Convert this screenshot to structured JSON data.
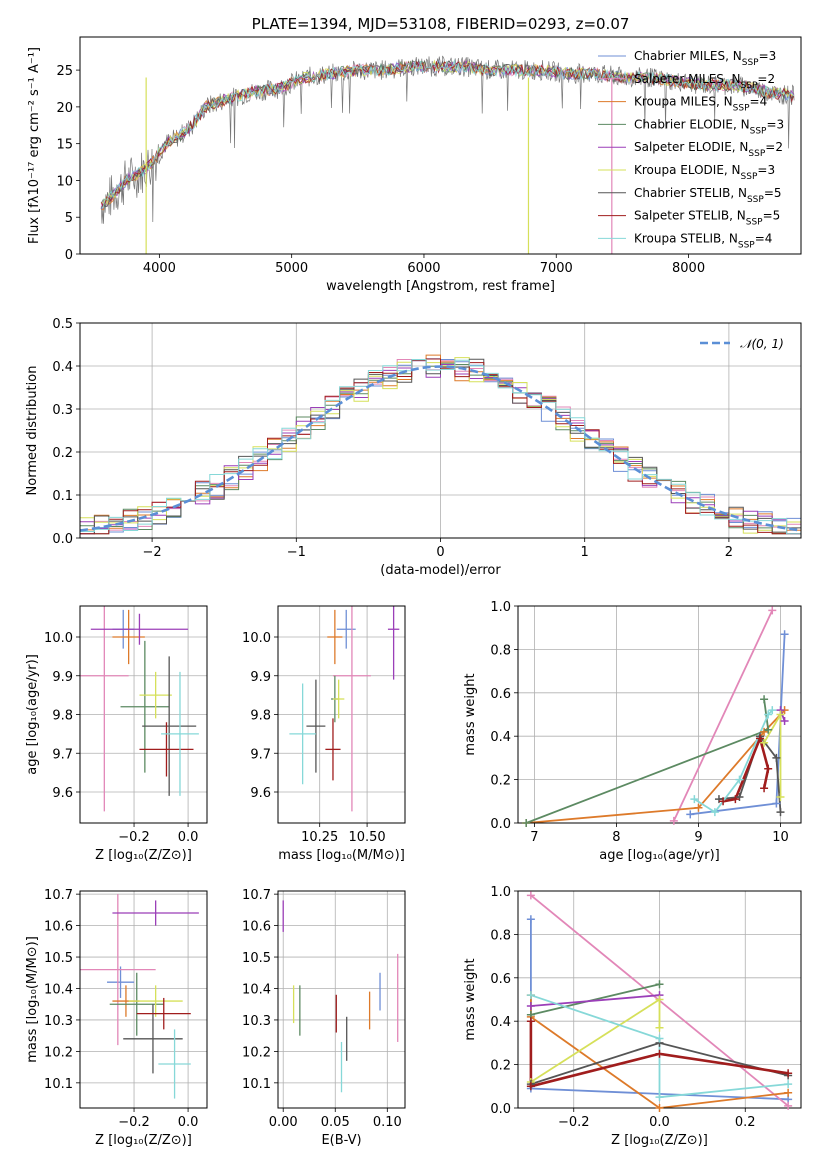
{
  "colors": {
    "chabrier_miles": "#6f8fd6",
    "salpeter_miles": "#e287b8",
    "kroupa_miles": "#dd7a2a",
    "chabrier_elodie": "#5c8a62",
    "salpeter_elodie": "#9b3fb8",
    "kroupa_elodie": "#d6e05a",
    "chabrier_stelib": "#555555",
    "salpeter_stelib": "#a01d1d",
    "kroupa_stelib": "#86d8d8",
    "data": "#777777",
    "normal": "#5b8fd6"
  },
  "legend_models": [
    {
      "key": "chabrier_miles",
      "label": "Chabrier MILES, N",
      "sub": "SSP",
      "n": "=3"
    },
    {
      "key": "salpeter_miles",
      "label": "Salpeter MILES, N",
      "sub": "SSP",
      "n": "=2"
    },
    {
      "key": "kroupa_miles",
      "label": "Kroupa MILES, N",
      "sub": "SSP",
      "n": "=4"
    },
    {
      "key": "chabrier_elodie",
      "label": "Chabrier ELODIE, N",
      "sub": "SSP",
      "n": "=3"
    },
    {
      "key": "salpeter_elodie",
      "label": "Salpeter ELODIE, N",
      "sub": "SSP",
      "n": "=2"
    },
    {
      "key": "kroupa_elodie",
      "label": "Kroupa ELODIE, N",
      "sub": "SSP",
      "n": "=3"
    },
    {
      "key": "chabrier_stelib",
      "label": "Chabrier STELIB, N",
      "sub": "SSP",
      "n": "=5"
    },
    {
      "key": "salpeter_stelib",
      "label": "Salpeter STELIB, N",
      "sub": "SSP",
      "n": "=5"
    },
    {
      "key": "kroupa_stelib",
      "label": "Kroupa STELIB, N",
      "sub": "SSP",
      "n": "=4"
    }
  ],
  "chart_data": [
    {
      "id": "spectrum",
      "type": "line",
      "title": "PLATE=1394, MJD=53108, FIBERID=0293, z=0.07",
      "xlabel": "wavelength [Angstrom, rest frame]",
      "ylabel": "Flux [fλ10⁻¹⁷ erg cm⁻² s⁻¹ A⁻¹]",
      "xlim": [
        3400,
        8850
      ],
      "ylim": [
        0,
        29.5
      ],
      "xticks": [
        4000,
        5000,
        6000,
        7000,
        8000
      ],
      "yticks": [
        0,
        5,
        10,
        15,
        20,
        25
      ],
      "legend": "upper right",
      "continuum_x": [
        3560,
        3650,
        3750,
        3850,
        3950,
        4050,
        4150,
        4250,
        4350,
        4500,
        4700,
        4900,
        5100,
        5300,
        5500,
        5700,
        5900,
        6100,
        6300,
        6500,
        6700,
        6900,
        7100,
        7300,
        7500,
        7700,
        7900,
        8100,
        8300,
        8500,
        8600,
        8800
      ],
      "continuum_y": [
        6.5,
        8,
        10,
        11,
        12.5,
        15,
        16,
        17.5,
        20,
        21,
        22,
        22.5,
        24,
        24.5,
        25,
        25,
        25.5,
        25.5,
        25.5,
        25,
        25,
        25,
        24.5,
        24.5,
        24,
        24,
        23.5,
        23,
        23,
        22.5,
        22,
        21.5
      ]
    },
    {
      "id": "residuals",
      "type": "histogram",
      "xlabel": "(data-model)/error",
      "ylabel": "Normed distribution",
      "xlim": [
        -2.5,
        2.5
      ],
      "ylim": [
        0,
        0.5
      ],
      "xticks": [
        -2,
        -1,
        0,
        1,
        2
      ],
      "yticks": [
        0.0,
        0.1,
        0.2,
        0.3,
        0.4,
        0.5
      ],
      "grid": true,
      "legend_label": "𝒩(0, 1)",
      "legend": "upper right"
    },
    {
      "id": "age_vs_Z",
      "type": "scatter",
      "xlabel": "Z [log₁₀(Z/Z⊙)]",
      "ylabel": "age [log₁₀(age/yr)]",
      "xlim": [
        -0.4,
        0.07
      ],
      "ylim": [
        9.52,
        10.08
      ],
      "xticks": [
        -0.2,
        0.0
      ],
      "yticks": [
        9.6,
        9.7,
        9.8,
        9.9,
        10.0
      ],
      "grid": true,
      "points": [
        {
          "key": "chabrier_miles",
          "x": -0.24,
          "y": 10.02,
          "xerr": 0.04,
          "yerr": 0.05
        },
        {
          "key": "salpeter_miles",
          "x": -0.31,
          "y": 9.9,
          "xerr": 0.09,
          "yerr": 0.35
        },
        {
          "key": "kroupa_miles",
          "x": -0.22,
          "y": 10.0,
          "xerr": 0.06,
          "yerr": 0.07
        },
        {
          "key": "chabrier_elodie",
          "x": -0.16,
          "y": 9.82,
          "xerr": 0.09,
          "yerr": 0.17
        },
        {
          "key": "salpeter_elodie",
          "x": -0.18,
          "y": 10.02,
          "xerr": 0.18,
          "yerr": 0.04
        },
        {
          "key": "kroupa_elodie",
          "x": -0.12,
          "y": 9.85,
          "xerr": 0.06,
          "yerr": 0.06
        },
        {
          "key": "chabrier_stelib",
          "x": -0.07,
          "y": 9.77,
          "xerr": 0.1,
          "yerr": 0.18
        },
        {
          "key": "salpeter_stelib",
          "x": -0.08,
          "y": 9.71,
          "xerr": 0.1,
          "yerr": 0.07
        },
        {
          "key": "kroupa_stelib",
          "x": -0.03,
          "y": 9.75,
          "xerr": 0.07,
          "yerr": 0.16
        }
      ]
    },
    {
      "id": "age_vs_mass",
      "type": "scatter",
      "xlabel": "mass [log₁₀(M/M⊙)]",
      "ylabel": "",
      "xlim": [
        10.03,
        10.7
      ],
      "ylim": [
        9.52,
        10.08
      ],
      "xticks": [
        10.25,
        10.5
      ],
      "yticks": [
        9.6,
        9.7,
        9.8,
        9.9,
        10.0
      ],
      "grid": true,
      "points": [
        {
          "key": "chabrier_miles",
          "x": 10.39,
          "y": 10.02,
          "xerr": 0.05,
          "yerr": 0.05
        },
        {
          "key": "salpeter_miles",
          "x": 10.42,
          "y": 9.9,
          "xerr": 0.1,
          "yerr": 0.35
        },
        {
          "key": "kroupa_miles",
          "x": 10.33,
          "y": 10.0,
          "xerr": 0.04,
          "yerr": 0.07
        },
        {
          "key": "chabrier_elodie",
          "x": 10.33,
          "y": 9.84,
          "xerr": 0.02,
          "yerr": 0.06
        },
        {
          "key": "salpeter_elodie",
          "x": 10.64,
          "y": 10.02,
          "xerr": 0.03,
          "yerr": 0.13
        },
        {
          "key": "kroupa_elodie",
          "x": 10.35,
          "y": 9.84,
          "xerr": 0.03,
          "yerr": 0.05
        },
        {
          "key": "chabrier_stelib",
          "x": 10.23,
          "y": 9.77,
          "xerr": 0.05,
          "yerr": 0.12
        },
        {
          "key": "salpeter_stelib",
          "x": 10.32,
          "y": 9.71,
          "xerr": 0.04,
          "yerr": 0.08
        },
        {
          "key": "kroupa_stelib",
          "x": 10.16,
          "y": 9.75,
          "xerr": 0.07,
          "yerr": 0.13
        }
      ]
    },
    {
      "id": "weight_vs_age",
      "type": "line",
      "xlabel": "age [log₁₀(age/yr)]",
      "ylabel": "mass weight",
      "xlim": [
        6.8,
        10.25
      ],
      "ylim": [
        0,
        1.0
      ],
      "xticks": [
        7,
        8,
        9,
        10
      ],
      "yticks": [
        0.0,
        0.2,
        0.4,
        0.6,
        0.8,
        1.0
      ],
      "grid": true,
      "series": [
        {
          "key": "chabrier_miles",
          "x": [
            8.9,
            9.95,
            10.05
          ],
          "y": [
            0.04,
            0.09,
            0.87
          ]
        },
        {
          "key": "salpeter_miles",
          "x": [
            8.7,
            9.9
          ],
          "y": [
            0.01,
            0.98
          ]
        },
        {
          "key": "kroupa_miles",
          "x": [
            6.9,
            9.0,
            9.8,
            10.05
          ],
          "y": [
            0.0,
            0.07,
            0.42,
            0.52
          ]
        },
        {
          "key": "chabrier_elodie",
          "x": [
            6.9,
            9.85,
            9.8
          ],
          "y": [
            0.0,
            0.43,
            0.57
          ]
        },
        {
          "key": "salpeter_elodie",
          "x": [
            10.0,
            10.05
          ],
          "y": [
            0.52,
            0.47
          ]
        },
        {
          "key": "kroupa_elodie",
          "x": [
            9.8,
            10.0,
            10.0
          ],
          "y": [
            0.37,
            0.5,
            0.12
          ]
        },
        {
          "key": "chabrier_stelib",
          "x": [
            9.25,
            9.5,
            9.75,
            9.95,
            10.0
          ],
          "y": [
            0.11,
            0.12,
            0.4,
            0.3,
            0.05
          ]
        },
        {
          "key": "salpeter_stelib",
          "x": [
            9.3,
            9.45,
            9.75,
            9.85,
            9.8
          ],
          "y": [
            0.1,
            0.11,
            0.39,
            0.25,
            0.16
          ]
        },
        {
          "key": "kroupa_stelib",
          "x": [
            8.95,
            9.2,
            9.5,
            9.85,
            9.9
          ],
          "y": [
            0.11,
            0.05,
            0.2,
            0.5,
            0.52
          ]
        }
      ]
    },
    {
      "id": "mass_vs_Z",
      "type": "scatter",
      "xlabel": "Z [log₁₀(Z/Z⊙)]",
      "ylabel": "mass [log₁₀(M/M⊙)]",
      "xlim": [
        -0.4,
        0.07
      ],
      "ylim": [
        10.02,
        10.71
      ],
      "xticks": [
        -0.2,
        0.0
      ],
      "yticks": [
        10.1,
        10.2,
        10.3,
        10.4,
        10.5,
        10.6,
        10.7
      ],
      "grid": true,
      "points": [
        {
          "key": "chabrier_miles",
          "x": -0.25,
          "y": 10.42,
          "xerr": 0.05,
          "yerr": 0.05
        },
        {
          "key": "salpeter_miles",
          "x": -0.26,
          "y": 10.46,
          "xerr": 0.14,
          "yerr": 0.24
        },
        {
          "key": "kroupa_miles",
          "x": -0.23,
          "y": 10.36,
          "xerr": 0.05,
          "yerr": 0.05
        },
        {
          "key": "chabrier_elodie",
          "x": -0.19,
          "y": 10.35,
          "xerr": 0.1,
          "yerr": 0.1
        },
        {
          "key": "salpeter_elodie",
          "x": -0.12,
          "y": 10.64,
          "xerr": 0.16,
          "yerr": 0.04
        },
        {
          "key": "kroupa_elodie",
          "x": -0.12,
          "y": 10.36,
          "xerr": 0.1,
          "yerr": 0.05
        },
        {
          "key": "chabrier_stelib",
          "x": -0.13,
          "y": 10.24,
          "xerr": 0.11,
          "yerr": 0.11
        },
        {
          "key": "salpeter_stelib",
          "x": -0.09,
          "y": 10.32,
          "xerr": 0.1,
          "yerr": 0.05
        },
        {
          "key": "kroupa_stelib",
          "x": -0.05,
          "y": 10.16,
          "xerr": 0.06,
          "yerr": 0.11
        }
      ]
    },
    {
      "id": "mass_vs_ebv",
      "type": "scatter",
      "xlabel": "E(B-V)",
      "ylabel": "",
      "xlim": [
        -0.005,
        0.117
      ],
      "ylim": [
        10.02,
        10.71
      ],
      "xticks": [
        0.0,
        0.05,
        0.1
      ],
      "yticks": [
        10.1,
        10.2,
        10.3,
        10.4,
        10.5,
        10.6,
        10.7
      ],
      "grid": true,
      "points": [
        {
          "key": "chabrier_miles",
          "x": 0.093,
          "y": 10.39,
          "xerr": 0,
          "yerr": 0.06
        },
        {
          "key": "salpeter_miles",
          "x": 0.11,
          "y": 10.37,
          "xerr": 0,
          "yerr": 0.14
        },
        {
          "key": "kroupa_miles",
          "x": 0.083,
          "y": 10.33,
          "xerr": 0,
          "yerr": 0.06
        },
        {
          "key": "chabrier_elodie",
          "x": 0.016,
          "y": 10.33,
          "xerr": 0,
          "yerr": 0.08
        },
        {
          "key": "salpeter_elodie",
          "x": 0.0,
          "y": 10.63,
          "xerr": 0,
          "yerr": 0.05
        },
        {
          "key": "kroupa_elodie",
          "x": 0.01,
          "y": 10.35,
          "xerr": 0,
          "yerr": 0.06
        },
        {
          "key": "chabrier_stelib",
          "x": 0.061,
          "y": 10.24,
          "xerr": 0,
          "yerr": 0.07
        },
        {
          "key": "salpeter_stelib",
          "x": 0.051,
          "y": 10.32,
          "xerr": 0,
          "yerr": 0.06
        },
        {
          "key": "kroupa_stelib",
          "x": 0.056,
          "y": 10.15,
          "xerr": 0,
          "yerr": 0.08
        }
      ]
    },
    {
      "id": "weight_vs_Z",
      "type": "line",
      "xlabel": "Z [log₁₀(Z/Z⊙)]",
      "ylabel": "mass weight",
      "xlim": [
        -0.33,
        0.33
      ],
      "ylim": [
        0,
        1.0
      ],
      "xticks": [
        -0.2,
        0.0,
        0.2
      ],
      "yticks": [
        0.0,
        0.2,
        0.4,
        0.6,
        0.8,
        1.0
      ],
      "grid": true,
      "series": [
        {
          "key": "chabrier_miles",
          "x": [
            -0.3,
            -0.3,
            0.3
          ],
          "y": [
            0.87,
            0.09,
            0.04
          ]
        },
        {
          "key": "salpeter_miles",
          "x": [
            -0.3,
            0.3
          ],
          "y": [
            0.98,
            0.01
          ]
        },
        {
          "key": "kroupa_miles",
          "x": [
            -0.3,
            -0.3,
            0.0,
            0.3
          ],
          "y": [
            0.52,
            0.42,
            0.0,
            0.07
          ]
        },
        {
          "key": "chabrier_elodie",
          "x": [
            -0.3,
            0.0
          ],
          "y": [
            0.43,
            0.57
          ]
        },
        {
          "key": "salpeter_elodie",
          "x": [
            -0.3,
            0.0
          ],
          "y": [
            0.47,
            0.52
          ]
        },
        {
          "key": "kroupa_elodie",
          "x": [
            -0.3,
            0.0,
            0.0
          ],
          "y": [
            0.12,
            0.5,
            0.37
          ]
        },
        {
          "key": "chabrier_stelib",
          "x": [
            -0.3,
            0.0,
            0.3
          ],
          "y": [
            0.11,
            0.3,
            0.15
          ]
        },
        {
          "key": "salpeter_stelib",
          "x": [
            -0.3,
            -0.3,
            0.0,
            0.3
          ],
          "y": [
            0.4,
            0.1,
            0.25,
            0.16
          ]
        },
        {
          "key": "kroupa_stelib",
          "x": [
            -0.3,
            0.0,
            0.0,
            0.3
          ],
          "y": [
            0.52,
            0.32,
            0.05,
            0.11
          ]
        }
      ]
    }
  ]
}
